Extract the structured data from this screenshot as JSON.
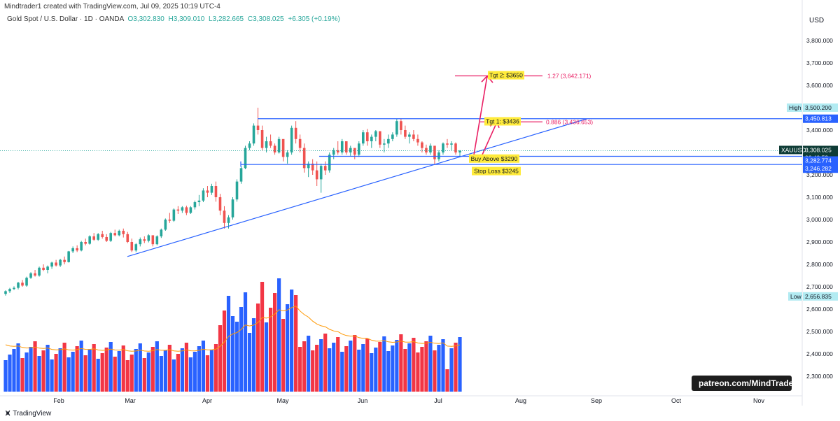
{
  "header": {
    "created": "Mindtrader1 created with TradingView.com, Jul 09, 2025 10:19 UTC-4",
    "symbol": "Gold Spot / U.S. Dollar · 1D · OANDA",
    "open": "O3,302.830",
    "high": "H3,309.010",
    "low": "L3,282.665",
    "close": "C3,308.025",
    "change": "+6.305 (+0.19%)"
  },
  "axis": {
    "currency": "USD",
    "y_ticks": [
      "3,800.000",
      "3,700.000",
      "3,600.000",
      "3,500.000",
      "3,400.000",
      "3,300.000",
      "3,200.000",
      "3,100.000",
      "3,000.000",
      "2,900.000",
      "2,800.000",
      "2,700.000",
      "2,600.000",
      "2,500.000",
      "2,400.000",
      "2,300.000"
    ],
    "x_ticks": [
      "Feb",
      "Mar",
      "Apr",
      "May",
      "Jun",
      "Jul",
      "Aug",
      "Sep",
      "Oct",
      "Nov"
    ]
  },
  "price_tags": {
    "high_label": "High",
    "high_value": "3,500.200",
    "level1": "3,450.813",
    "symbol_tag": "XAUUSD",
    "last_price": "3,308.025",
    "countdown": "06:40:53",
    "level2": "3,282.774",
    "level3": "3,246.282",
    "low_label": "Low",
    "low_value": "2,656.835"
  },
  "annotations": {
    "tgt2": "Tgt 2: $3650",
    "tgt1": "Tgt 1: $3436",
    "fib127": "1.27 (3,642.171)",
    "fib886": "0.886 (3,436.653)",
    "buy": "Buy Above $3290",
    "stop": "Stop Loss $3245"
  },
  "footer": {
    "brand": "TradingView"
  },
  "watermark": "patreon.com/MindTrader",
  "colors": {
    "up": "#26a69a",
    "down": "#ef5350",
    "vol_up": "#2962ff",
    "vol_down": "#f23645",
    "line": "#2962ff",
    "arrow": "#e91e63",
    "ma": "#ff9800",
    "label_bg": "#ffeb3b"
  },
  "chart_data": {
    "type": "candlestick",
    "symbol": "XAUUSD",
    "ylim": [
      2230,
      3900
    ],
    "candles": [
      [
        2668,
        2684,
        2660,
        2680
      ],
      [
        2680,
        2695,
        2672,
        2690
      ],
      [
        2690,
        2702,
        2685,
        2695
      ],
      [
        2695,
        2722,
        2688,
        2718
      ],
      [
        2718,
        2730,
        2700,
        2705
      ],
      [
        2705,
        2745,
        2700,
        2740
      ],
      [
        2740,
        2765,
        2735,
        2760
      ],
      [
        2760,
        2775,
        2745,
        2750
      ],
      [
        2750,
        2790,
        2745,
        2785
      ],
      [
        2785,
        2800,
        2770,
        2775
      ],
      [
        2775,
        2795,
        2760,
        2790
      ],
      [
        2790,
        2812,
        2780,
        2808
      ],
      [
        2808,
        2820,
        2790,
        2795
      ],
      [
        2795,
        2825,
        2788,
        2820
      ],
      [
        2820,
        2835,
        2800,
        2810
      ],
      [
        2810,
        2860,
        2808,
        2858
      ],
      [
        2858,
        2880,
        2850,
        2872
      ],
      [
        2872,
        2885,
        2855,
        2862
      ],
      [
        2862,
        2905,
        2858,
        2900
      ],
      [
        2900,
        2915,
        2885,
        2892
      ],
      [
        2892,
        2930,
        2888,
        2925
      ],
      [
        2925,
        2940,
        2905,
        2910
      ],
      [
        2910,
        2940,
        2905,
        2935
      ],
      [
        2935,
        2950,
        2915,
        2922
      ],
      [
        2922,
        2935,
        2900,
        2905
      ],
      [
        2905,
        2945,
        2900,
        2940
      ],
      [
        2940,
        2955,
        2925,
        2930
      ],
      [
        2930,
        2955,
        2925,
        2950
      ],
      [
        2950,
        2960,
        2920,
        2935
      ],
      [
        2935,
        2945,
        2895,
        2900
      ],
      [
        2900,
        2915,
        2855,
        2862
      ],
      [
        2862,
        2895,
        2855,
        2890
      ],
      [
        2890,
        2920,
        2880,
        2912
      ],
      [
        2912,
        2925,
        2895,
        2905
      ],
      [
        2905,
        2935,
        2898,
        2930
      ],
      [
        2930,
        2925,
        2880,
        2890
      ],
      [
        2890,
        2930,
        2885,
        2925
      ],
      [
        2925,
        2960,
        2918,
        2955
      ],
      [
        2955,
        3005,
        2950,
        3000
      ],
      [
        3000,
        3030,
        2985,
        2995
      ],
      [
        2995,
        3050,
        2990,
        3045
      ],
      [
        3045,
        3060,
        3025,
        3040
      ],
      [
        3040,
        3060,
        3030,
        3055
      ],
      [
        3055,
        3062,
        3020,
        3030
      ],
      [
        3030,
        3060,
        3025,
        3055
      ],
      [
        3055,
        3085,
        3045,
        3078
      ],
      [
        3078,
        3110,
        3060,
        3085
      ],
      [
        3085,
        3140,
        3078,
        3130
      ],
      [
        3130,
        3150,
        3100,
        3120
      ],
      [
        3120,
        3160,
        3110,
        3150
      ],
      [
        3150,
        3170,
        3080,
        3100
      ],
      [
        3100,
        3115,
        3020,
        3040
      ],
      [
        3040,
        3060,
        2960,
        2985
      ],
      [
        2985,
        3020,
        2960,
        3010
      ],
      [
        3010,
        3100,
        3000,
        3090
      ],
      [
        3090,
        3180,
        3080,
        3170
      ],
      [
        3170,
        3240,
        3160,
        3230
      ],
      [
        3230,
        3330,
        3225,
        3320
      ],
      [
        3320,
        3350,
        3310,
        3340
      ],
      [
        3340,
        3430,
        3330,
        3420
      ],
      [
        3420,
        3500,
        3380,
        3400
      ],
      [
        3400,
        3420,
        3310,
        3320
      ],
      [
        3320,
        3370,
        3300,
        3350
      ],
      [
        3350,
        3380,
        3320,
        3330
      ],
      [
        3330,
        3340,
        3290,
        3300
      ],
      [
        3300,
        3370,
        3295,
        3360
      ],
      [
        3360,
        3350,
        3260,
        3280
      ],
      [
        3280,
        3310,
        3250,
        3300
      ],
      [
        3300,
        3420,
        3290,
        3410
      ],
      [
        3410,
        3440,
        3340,
        3360
      ],
      [
        3360,
        3380,
        3300,
        3320
      ],
      [
        3320,
        3340,
        3210,
        3230
      ],
      [
        3230,
        3260,
        3190,
        3250
      ],
      [
        3250,
        3270,
        3200,
        3220
      ],
      [
        3220,
        3260,
        3150,
        3180
      ],
      [
        3180,
        3250,
        3120,
        3240
      ],
      [
        3240,
        3260,
        3200,
        3220
      ],
      [
        3220,
        3300,
        3210,
        3290
      ],
      [
        3290,
        3320,
        3270,
        3310
      ],
      [
        3310,
        3350,
        3290,
        3300
      ],
      [
        3300,
        3360,
        3290,
        3350
      ],
      [
        3350,
        3345,
        3290,
        3300
      ],
      [
        3300,
        3330,
        3285,
        3320
      ],
      [
        3320,
        3310,
        3270,
        3290
      ],
      [
        3290,
        3350,
        3280,
        3340
      ],
      [
        3340,
        3400,
        3330,
        3390
      ],
      [
        3390,
        3405,
        3330,
        3350
      ],
      [
        3350,
        3380,
        3320,
        3370
      ],
      [
        3370,
        3400,
        3350,
        3395
      ],
      [
        3395,
        3390,
        3320,
        3335
      ],
      [
        3335,
        3360,
        3300,
        3340
      ],
      [
        3340,
        3380,
        3320,
        3360
      ],
      [
        3360,
        3390,
        3350,
        3380
      ],
      [
        3380,
        3450,
        3370,
        3440
      ],
      [
        3440,
        3452,
        3380,
        3400
      ],
      [
        3400,
        3420,
        3360,
        3370
      ],
      [
        3370,
        3390,
        3340,
        3380
      ],
      [
        3380,
        3400,
        3350,
        3360
      ],
      [
        3360,
        3380,
        3330,
        3345
      ],
      [
        3345,
        3350,
        3300,
        3320
      ],
      [
        3320,
        3335,
        3290,
        3300
      ],
      [
        3300,
        3340,
        3290,
        3330
      ],
      [
        3330,
        3325,
        3245,
        3270
      ],
      [
        3270,
        3310,
        3260,
        3300
      ],
      [
        3300,
        3345,
        3290,
        3340
      ],
      [
        3340,
        3360,
        3320,
        3335
      ],
      [
        3335,
        3350,
        3310,
        3340
      ],
      [
        3340,
        3345,
        3290,
        3300
      ],
      [
        3300,
        3310,
        3282,
        3308
      ]
    ],
    "volume_note": "relative volume bars with moving average line",
    "levels": [
      3450.813,
      3282.774,
      3246.282
    ],
    "fib": [
      {
        "ratio": "1.27",
        "value": 3642.171
      },
      {
        "ratio": "0.886",
        "value": 3436.653
      }
    ],
    "targets": [
      3650,
      3436
    ],
    "buy_above": 3290,
    "stop_loss": 3245,
    "trendline_start": {
      "date": "Feb 28",
      "price": 2835
    },
    "trendline_end": {
      "date": "Aug 25",
      "price": 3450
    }
  }
}
